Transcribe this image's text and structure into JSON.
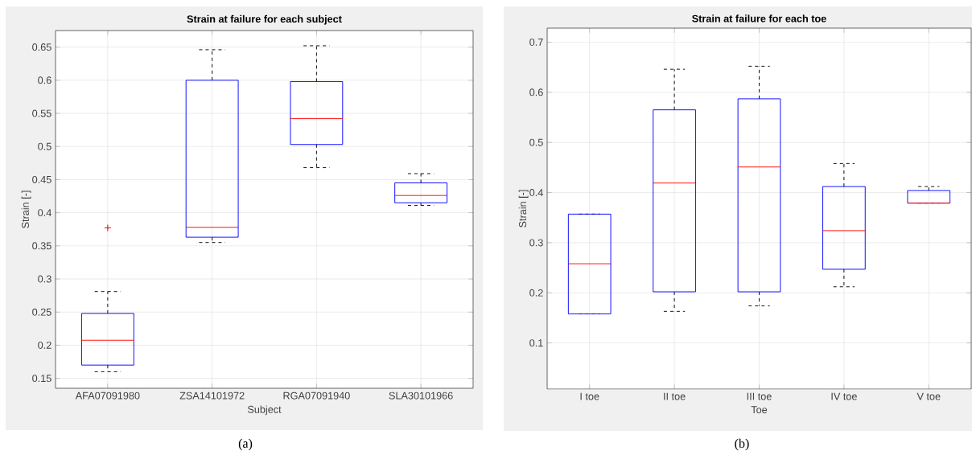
{
  "chart_data": [
    {
      "type": "box",
      "title": "Strain at failure for each subject",
      "xlabel": "Subject",
      "ylabel": "Strain [-]",
      "categories": [
        "AFA07091980",
        "ZSA14101972",
        "RGA07091940",
        "SLA30101966"
      ],
      "color": "#0000ff",
      "boxes": [
        {
          "low": 0.16,
          "q1": 0.17,
          "median": 0.2075,
          "q3": 0.248,
          "high": 0.281,
          "outliers": [
            0.377
          ]
        },
        {
          "low": 0.355,
          "q1": 0.363,
          "median": 0.378,
          "q3": 0.6,
          "high": 0.646
        },
        {
          "low": 0.468,
          "q1": 0.503,
          "median": 0.542,
          "q3": 0.598,
          "high": 0.652
        },
        {
          "low": 0.411,
          "q1": 0.415,
          "median": 0.426,
          "q3": 0.445,
          "high": 0.459
        }
      ],
      "ylim": [
        0.135,
        0.675
      ],
      "yticks": [
        0.15,
        0.2,
        0.25,
        0.3,
        0.35,
        0.4,
        0.45,
        0.5,
        0.55,
        0.6,
        0.65
      ],
      "grid": true,
      "annotations": [
        "(a)"
      ]
    },
    {
      "type": "box",
      "title": "Strain at failure for each toe",
      "xlabel": "Toe",
      "ylabel": "Strain [-]",
      "categories": [
        "I toe",
        "II toe",
        "III toe",
        "IV toe",
        "V toe"
      ],
      "color": "#0000ff",
      "boxes": [
        {
          "low": 0.158,
          "q1": 0.158,
          "median": 0.258,
          "q3": 0.357,
          "high": 0.357
        },
        {
          "low": 0.163,
          "q1": 0.202,
          "median": 0.419,
          "q3": 0.565,
          "high": 0.646
        },
        {
          "low": 0.174,
          "q1": 0.202,
          "median": 0.451,
          "q3": 0.587,
          "high": 0.652
        },
        {
          "low": 0.212,
          "q1": 0.247,
          "median": 0.324,
          "q3": 0.412,
          "high": 0.458
        },
        {
          "low": 0.379,
          "q1": 0.379,
          "median": 0.379,
          "q3": 0.404,
          "high": 0.412
        }
      ],
      "ylim": [
        0.008,
        0.728
      ],
      "yticks": [
        0.1,
        0.2,
        0.3,
        0.4,
        0.5,
        0.6,
        0.7
      ],
      "grid": true,
      "annotations": [
        "(b)"
      ]
    }
  ]
}
